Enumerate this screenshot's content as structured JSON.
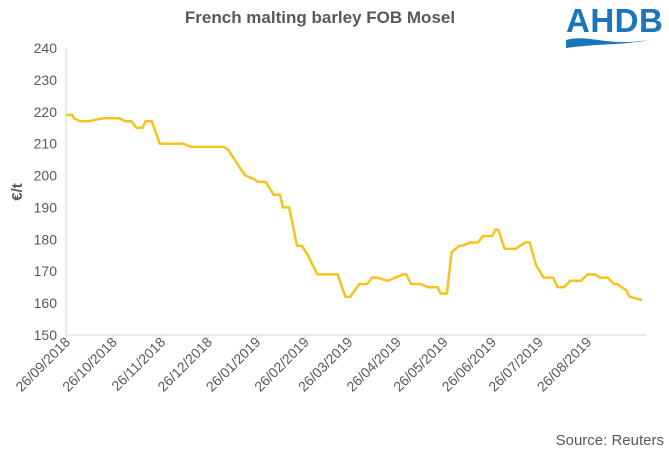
{
  "chart_data": {
    "type": "line",
    "title": "French malting barley FOB Mosel",
    "ylabel": "€/t",
    "xlabel": "",
    "ylim": [
      150,
      240
    ],
    "yticks": [
      150,
      160,
      170,
      180,
      190,
      200,
      210,
      220,
      230,
      240
    ],
    "x_range": [
      "26/09/2018",
      "30/09/2019"
    ],
    "xtick_labels": [
      "26/09/2018",
      "26/10/2018",
      "26/11/2018",
      "26/12/2018",
      "26/01/2019",
      "26/02/2019",
      "26/03/2019",
      "26/04/2019",
      "26/05/2019",
      "26/06/2019",
      "26/07/2019",
      "26/08/2019"
    ],
    "grid": false,
    "line_color": "#f7c21c",
    "series": [
      {
        "x": [
          "2018-09-26",
          "2018-09-30",
          "2018-10-01",
          "2018-10-05",
          "2018-10-10",
          "2018-10-20",
          "2018-10-30",
          "2018-11-03",
          "2018-11-07",
          "2018-11-10",
          "2018-11-14",
          "2018-11-16",
          "2018-11-20",
          "2018-11-25",
          "2018-12-05",
          "2018-12-10",
          "2018-12-15",
          "2018-12-22",
          "2019-01-02",
          "2019-01-05",
          "2019-01-08",
          "2019-01-12",
          "2019-01-16",
          "2019-01-19",
          "2019-01-24",
          "2019-01-27",
          "2019-02-01",
          "2019-02-06",
          "2019-02-08",
          "2019-02-10",
          "2019-02-12",
          "2019-02-14",
          "2019-02-16",
          "2019-02-21",
          "2019-02-24",
          "2019-02-28",
          "2019-03-03",
          "2019-03-06",
          "2019-03-11",
          "2019-03-14",
          "2019-03-19",
          "2019-03-24",
          "2019-03-27",
          "2019-04-02",
          "2019-04-07",
          "2019-04-10",
          "2019-04-13",
          "2019-04-20",
          "2019-04-25",
          "2019-04-30",
          "2019-05-02",
          "2019-05-05",
          "2019-05-08",
          "2019-05-11",
          "2019-05-16",
          "2019-05-22",
          "2019-05-24",
          "2019-05-28",
          "2019-05-31",
          "2019-06-05",
          "2019-06-07",
          "2019-06-12",
          "2019-06-17",
          "2019-06-20",
          "2019-06-26",
          "2019-06-28",
          "2019-06-30",
          "2019-07-04",
          "2019-07-07",
          "2019-07-11",
          "2019-07-17",
          "2019-07-20",
          "2019-07-24",
          "2019-07-29",
          "2019-08-04",
          "2019-08-07",
          "2019-08-11",
          "2019-08-15",
          "2019-08-22",
          "2019-08-26",
          "2019-08-31",
          "2019-09-03",
          "2019-09-08",
          "2019-09-12",
          "2019-09-14",
          "2019-09-20",
          "2019-09-22",
          "2019-09-30"
        ],
        "y": [
          219,
          219,
          218,
          217,
          217,
          218,
          218,
          217,
          217,
          215,
          215,
          217,
          217,
          210,
          210,
          210,
          209,
          209,
          209,
          209,
          208,
          205,
          202,
          200,
          199,
          198,
          198,
          194,
          194,
          194,
          190,
          190,
          190,
          178,
          178,
          175,
          172,
          169,
          169,
          169,
          169,
          162,
          162,
          166,
          166,
          168,
          168,
          167,
          168,
          169,
          169,
          166,
          166,
          166,
          165,
          165,
          163,
          163,
          176,
          178,
          178,
          179,
          179,
          181,
          181,
          183,
          183,
          177,
          177,
          177,
          179,
          179,
          172,
          168,
          168,
          165,
          165,
          167,
          167,
          169,
          169,
          168,
          168,
          166,
          166,
          164,
          162,
          161
        ]
      }
    ],
    "source_text": "Source: Reuters",
    "logo_text": "AHDB"
  }
}
